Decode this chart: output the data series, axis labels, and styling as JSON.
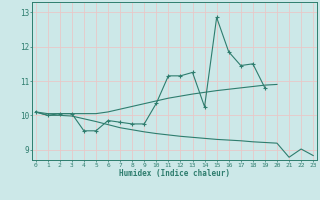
{
  "title": "",
  "xlabel": "Humidex (Indice chaleur)",
  "x": [
    0,
    1,
    2,
    3,
    4,
    5,
    6,
    7,
    8,
    9,
    10,
    11,
    12,
    13,
    14,
    15,
    16,
    17,
    18,
    19,
    20,
    21,
    22,
    23
  ],
  "line_main": [
    10.1,
    10.0,
    10.05,
    10.05,
    9.55,
    9.55,
    9.85,
    9.8,
    9.75,
    9.75,
    10.35,
    11.15,
    11.15,
    11.25,
    10.25,
    12.85,
    11.85,
    11.45,
    11.5,
    10.8,
    null,
    null,
    null,
    null
  ],
  "line_upper": [
    10.1,
    10.05,
    10.05,
    10.05,
    10.05,
    10.05,
    10.1,
    10.18,
    10.26,
    10.34,
    10.42,
    10.5,
    10.56,
    10.62,
    10.67,
    10.72,
    10.76,
    10.8,
    10.84,
    10.88,
    10.9,
    null,
    null,
    null
  ],
  "line_lower": [
    10.1,
    10.0,
    10.0,
    9.98,
    9.9,
    9.82,
    9.73,
    9.64,
    9.58,
    9.52,
    9.47,
    9.43,
    9.39,
    9.36,
    9.33,
    9.3,
    9.28,
    9.26,
    9.23,
    9.21,
    9.19,
    8.78,
    9.02,
    8.83
  ],
  "ylim": [
    8.7,
    13.3
  ],
  "yticks": [
    9,
    10,
    11,
    12,
    13
  ],
  "xlim": [
    -0.3,
    23.3
  ],
  "xticks": [
    0,
    1,
    2,
    3,
    4,
    5,
    6,
    7,
    8,
    9,
    10,
    11,
    12,
    13,
    14,
    15,
    16,
    17,
    18,
    19,
    20,
    21,
    22,
    23
  ],
  "line_color": "#2e7d6e",
  "bg_color": "#cce8e8",
  "grid_color": "#b0d8d8",
  "spine_color": "#2e7d6e"
}
